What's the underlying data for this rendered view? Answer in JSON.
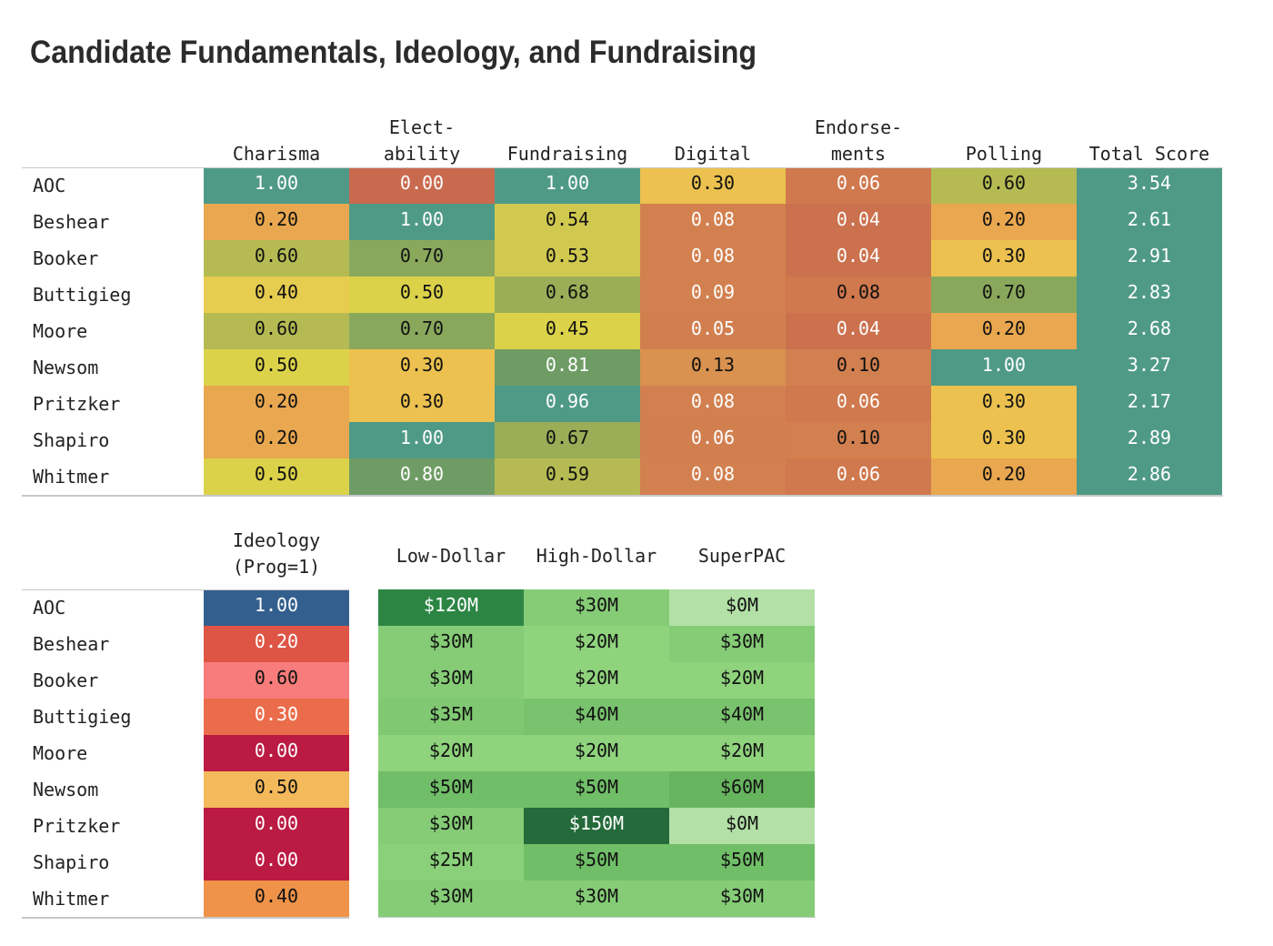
{
  "title": "Candidate Fundamentals, Ideology, and Fundraising",
  "chart_data": [
    {
      "type": "table",
      "name": "fundamentals",
      "columns": [
        "Charisma",
        "Elect-\nability",
        "Fundraising",
        "Digital",
        "Endorse-\nments",
        "Polling",
        "Total Score"
      ],
      "rows": [
        "AOC",
        "Beshear",
        "Booker",
        "Buttigieg",
        "Moore",
        "Newsom",
        "Pritzker",
        "Shapiro",
        "Whitmer"
      ],
      "values": [
        [
          1.0,
          0.0,
          1.0,
          0.3,
          0.06,
          0.6,
          3.54
        ],
        [
          0.2,
          1.0,
          0.54,
          0.08,
          0.04,
          0.2,
          2.61
        ],
        [
          0.6,
          0.7,
          0.53,
          0.08,
          0.04,
          0.3,
          2.91
        ],
        [
          0.4,
          0.5,
          0.68,
          0.09,
          0.08,
          0.7,
          2.83
        ],
        [
          0.6,
          0.7,
          0.45,
          0.05,
          0.04,
          0.2,
          2.68
        ],
        [
          0.5,
          0.3,
          0.81,
          0.13,
          0.1,
          1.0,
          3.27
        ],
        [
          0.2,
          0.3,
          0.96,
          0.08,
          0.06,
          0.3,
          2.17
        ],
        [
          0.2,
          1.0,
          0.67,
          0.06,
          0.1,
          0.3,
          2.89
        ],
        [
          0.5,
          0.8,
          0.59,
          0.08,
          0.06,
          0.2,
          2.86
        ]
      ],
      "labels": [
        [
          "1.00",
          "0.00",
          "1.00",
          "0.30",
          "0.06",
          "0.60",
          "3.54"
        ],
        [
          "0.20",
          "1.00",
          "0.54",
          "0.08",
          "0.04",
          "0.20",
          "2.61"
        ],
        [
          "0.60",
          "0.70",
          "0.53",
          "0.08",
          "0.04",
          "0.30",
          "2.91"
        ],
        [
          "0.40",
          "0.50",
          "0.68",
          "0.09",
          "0.08",
          "0.70",
          "2.83"
        ],
        [
          "0.60",
          "0.70",
          "0.45",
          "0.05",
          "0.04",
          "0.20",
          "2.68"
        ],
        [
          "0.50",
          "0.30",
          "0.81",
          "0.13",
          "0.10",
          "1.00",
          "3.27"
        ],
        [
          "0.20",
          "0.30",
          "0.96",
          "0.08",
          "0.06",
          "0.30",
          "2.17"
        ],
        [
          "0.20",
          "1.00",
          "0.67",
          "0.06",
          "0.10",
          "0.30",
          "2.89"
        ],
        [
          "0.50",
          "0.80",
          "0.59",
          "0.08",
          "0.06",
          "0.20",
          "2.86"
        ]
      ],
      "colors": [
        [
          "#4f9a86",
          "#c96a4f",
          "#4f9a86",
          "#ecc14f",
          "#d0784e",
          "#b5bb52",
          "#4f9a86"
        ],
        [
          "#e9a74f",
          "#4f9a86",
          "#d1c94f",
          "#d2804f",
          "#cb714e",
          "#e9a74f",
          "#4f9a86"
        ],
        [
          "#b5bb52",
          "#89a85c",
          "#d1c94f",
          "#d2804f",
          "#cb714e",
          "#ecc14f",
          "#4f9a86"
        ],
        [
          "#e6cc4f",
          "#dbd24a",
          "#9bad57",
          "#d2804f",
          "#d0784e",
          "#89a85c",
          "#4f9a86"
        ],
        [
          "#b5bb52",
          "#89a85c",
          "#dbd24a",
          "#d17f4f",
          "#cb714e",
          "#e9a74f",
          "#4f9a86"
        ],
        [
          "#dbd24a",
          "#ecc14f",
          "#6f9c65",
          "#d9924f",
          "#d2804f",
          "#4f9a86",
          "#4f9a86"
        ],
        [
          "#e9a74f",
          "#ecc14f",
          "#4f9a86",
          "#d2804f",
          "#d0784e",
          "#ecc14f",
          "#4f9a86"
        ],
        [
          "#e9a74f",
          "#4f9a86",
          "#9bad57",
          "#d17f4f",
          "#d2804f",
          "#ecc14f",
          "#4f9a86"
        ],
        [
          "#dbd24a",
          "#6f9c65",
          "#b5bb52",
          "#d2804f",
          "#d0784e",
          "#e9a74f",
          "#4f9a86"
        ]
      ],
      "text_colors": [
        [
          "#ffffff",
          "#ffffff",
          "#ffffff",
          "#111111",
          "#ffffff",
          "#111111",
          "#ffffff"
        ],
        [
          "#111111",
          "#ffffff",
          "#111111",
          "#ffffff",
          "#ffffff",
          "#111111",
          "#ffffff"
        ],
        [
          "#111111",
          "#111111",
          "#111111",
          "#ffffff",
          "#ffffff",
          "#111111",
          "#ffffff"
        ],
        [
          "#111111",
          "#111111",
          "#111111",
          "#ffffff",
          "#111111",
          "#111111",
          "#ffffff"
        ],
        [
          "#111111",
          "#111111",
          "#111111",
          "#ffffff",
          "#ffffff",
          "#111111",
          "#ffffff"
        ],
        [
          "#111111",
          "#111111",
          "#ffffff",
          "#111111",
          "#111111",
          "#ffffff",
          "#ffffff"
        ],
        [
          "#111111",
          "#111111",
          "#ffffff",
          "#ffffff",
          "#ffffff",
          "#111111",
          "#ffffff"
        ],
        [
          "#111111",
          "#ffffff",
          "#111111",
          "#ffffff",
          "#111111",
          "#111111",
          "#ffffff"
        ],
        [
          "#111111",
          "#ffffff",
          "#111111",
          "#ffffff",
          "#ffffff",
          "#111111",
          "#ffffff"
        ]
      ]
    },
    {
      "type": "table",
      "name": "ideology",
      "columns": [
        "Ideology\n(Prog=1)"
      ],
      "rows": [
        "AOC",
        "Beshear",
        "Booker",
        "Buttigieg",
        "Moore",
        "Newsom",
        "Pritzker",
        "Shapiro",
        "Whitmer"
      ],
      "values": [
        [
          1.0
        ],
        [
          0.2
        ],
        [
          0.6
        ],
        [
          0.3
        ],
        [
          0.0
        ],
        [
          0.5
        ],
        [
          0.0
        ],
        [
          0.0
        ],
        [
          0.4
        ]
      ],
      "labels": [
        [
          "1.00"
        ],
        [
          "0.20"
        ],
        [
          "0.60"
        ],
        [
          "0.30"
        ],
        [
          "0.00"
        ],
        [
          "0.50"
        ],
        [
          "0.00"
        ],
        [
          "0.00"
        ],
        [
          "0.40"
        ]
      ],
      "colors": [
        [
          "#335f8e"
        ],
        [
          "#de5546"
        ],
        [
          "#f77c7b"
        ],
        [
          "#ea6c4a"
        ],
        [
          "#bb1a43"
        ],
        [
          "#f4b95a"
        ],
        [
          "#bb1a43"
        ],
        [
          "#bb1a43"
        ],
        [
          "#ee9349"
        ]
      ],
      "text_colors": [
        [
          "#ffffff"
        ],
        [
          "#ffffff"
        ],
        [
          "#111111"
        ],
        [
          "#ffffff"
        ],
        [
          "#ffffff"
        ],
        [
          "#111111"
        ],
        [
          "#ffffff"
        ],
        [
          "#ffffff"
        ],
        [
          "#111111"
        ]
      ]
    },
    {
      "type": "table",
      "name": "fundraising",
      "columns": [
        "Low-Dollar",
        "High-Dollar",
        "SuperPAC"
      ],
      "rows": [
        "AOC",
        "Beshear",
        "Booker",
        "Buttigieg",
        "Moore",
        "Newsom",
        "Pritzker",
        "Shapiro",
        "Whitmer"
      ],
      "values": [
        [
          120,
          30,
          0
        ],
        [
          30,
          20,
          30
        ],
        [
          30,
          20,
          20
        ],
        [
          35,
          40,
          40
        ],
        [
          20,
          20,
          20
        ],
        [
          50,
          50,
          60
        ],
        [
          30,
          150,
          0
        ],
        [
          25,
          50,
          50
        ],
        [
          30,
          30,
          30
        ]
      ],
      "labels": [
        [
          "$120M",
          "$30M",
          "$0M"
        ],
        [
          "$30M",
          "$20M",
          "$30M"
        ],
        [
          "$30M",
          "$20M",
          "$20M"
        ],
        [
          "$35M",
          "$40M",
          "$40M"
        ],
        [
          "$20M",
          "$20M",
          "$20M"
        ],
        [
          "$50M",
          "$50M",
          "$60M"
        ],
        [
          "$30M",
          "$150M",
          "$0M"
        ],
        [
          "$25M",
          "$50M",
          "$50M"
        ],
        [
          "$30M",
          "$30M",
          "$30M"
        ]
      ],
      "colors": [
        [
          "#2d8544",
          "#86cc77",
          "#b2e0a6"
        ],
        [
          "#86cc77",
          "#8fd37d",
          "#86cc77"
        ],
        [
          "#86cc77",
          "#8fd37d",
          "#8fd37d"
        ],
        [
          "#80c872",
          "#79c26e",
          "#79c26e"
        ],
        [
          "#8fd37d",
          "#8fd37d",
          "#8fd37d"
        ],
        [
          "#70be68",
          "#70be68",
          "#67b45f"
        ],
        [
          "#86cc77",
          "#256a3b",
          "#b2e0a6"
        ],
        [
          "#8ad07a",
          "#70be68",
          "#70be68"
        ],
        [
          "#86cc77",
          "#86cc77",
          "#86cc77"
        ]
      ],
      "text_colors": [
        [
          "#ffffff",
          "#111111",
          "#111111"
        ],
        [
          "#111111",
          "#111111",
          "#111111"
        ],
        [
          "#111111",
          "#111111",
          "#111111"
        ],
        [
          "#111111",
          "#111111",
          "#111111"
        ],
        [
          "#111111",
          "#111111",
          "#111111"
        ],
        [
          "#111111",
          "#111111",
          "#111111"
        ],
        [
          "#111111",
          "#ffffff",
          "#111111"
        ],
        [
          "#111111",
          "#111111",
          "#111111"
        ],
        [
          "#111111",
          "#111111",
          "#111111"
        ]
      ]
    }
  ]
}
